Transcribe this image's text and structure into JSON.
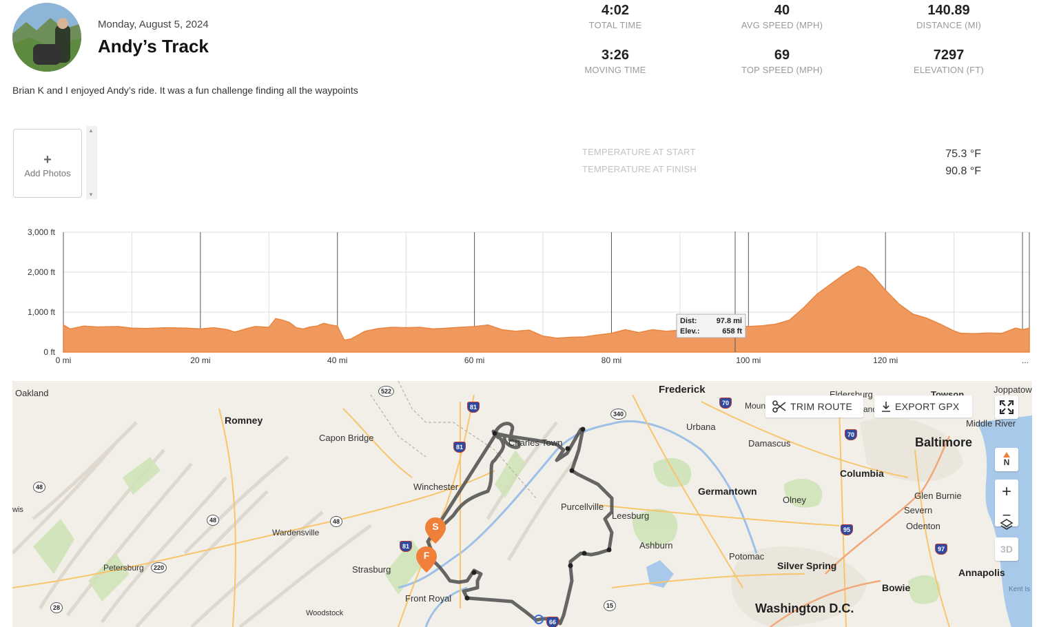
{
  "ride": {
    "date": "Monday, August 5, 2024",
    "title": "Andy’s Track",
    "description": "Brian K and I enjoyed Andy’s ride. It was a fun challenge finding all the waypoints"
  },
  "stats": [
    {
      "value": "4:02",
      "label": "TOTAL TIME"
    },
    {
      "value": "40",
      "label": "AVG SPEED (MPH)"
    },
    {
      "value": "140.89",
      "label": "DISTANCE (MI)"
    },
    {
      "value": "3:26",
      "label": "MOVING TIME"
    },
    {
      "value": "69",
      "label": "TOP SPEED (MPH)"
    },
    {
      "value": "7297",
      "label": "ELEVATION (FT)"
    }
  ],
  "photos": {
    "label": "Add Photos",
    "plus": "+"
  },
  "temperature": {
    "start_label": "TEMPERATURE AT START",
    "finish_label": "TEMPERATURE AT FINISH",
    "start_value": "75.3 °F",
    "finish_value": "90.8 °F"
  },
  "chart_data": {
    "type": "area",
    "title": "",
    "xlabel": "",
    "ylabel": "",
    "xlim": [
      0,
      141
    ],
    "ylim": [
      0,
      3000
    ],
    "grid": true,
    "color": "#f0995e",
    "y_ticks": [
      "0 ft",
      "1,000 ft",
      "2,000 ft",
      "3,000 ft"
    ],
    "x_ticks": [
      "0 mi",
      "20 mi",
      "40 mi",
      "60 mi",
      "80 mi",
      "100 mi",
      "120 mi",
      "..."
    ],
    "series": [
      {
        "x": [
          0,
          1,
          3,
          5,
          8,
          10,
          12,
          15,
          18,
          20,
          22,
          24,
          25,
          27,
          28,
          30,
          31,
          32,
          33,
          34,
          35,
          36,
          37,
          38,
          39,
          40,
          41,
          42,
          44,
          46,
          48,
          50,
          52,
          54,
          56,
          58,
          60,
          62,
          64,
          66,
          68,
          70,
          72,
          74,
          76,
          78,
          80,
          82,
          84,
          86,
          88,
          90,
          92,
          94,
          96,
          98,
          100,
          102,
          104,
          106,
          108,
          110,
          112,
          114,
          116,
          117,
          118,
          120,
          122,
          124,
          126,
          128,
          130,
          131,
          133,
          135,
          137,
          139,
          140,
          141
        ],
        "y": [
          680,
          580,
          650,
          630,
          640,
          600,
          590,
          610,
          600,
          580,
          610,
          560,
          500,
          600,
          640,
          620,
          840,
          800,
          740,
          610,
          580,
          630,
          650,
          720,
          680,
          650,
          300,
          330,
          520,
          590,
          620,
          610,
          620,
          580,
          600,
          620,
          640,
          680,
          560,
          520,
          550,
          400,
          350,
          370,
          380,
          430,
          470,
          560,
          490,
          560,
          520,
          550,
          560,
          610,
          630,
          658,
          640,
          660,
          700,
          800,
          1100,
          1450,
          1700,
          1950,
          2150,
          2100,
          1950,
          1550,
          1200,
          950,
          850,
          700,
          530,
          470,
          460,
          480,
          470,
          600,
          560,
          600
        ]
      }
    ],
    "tooltip": {
      "dist_label": "Dist:",
      "dist_value": "97.8 mi",
      "elev_label": "Elev.:",
      "elev_value": "658 ft"
    }
  },
  "map": {
    "trim_label": "TRIM ROUTE",
    "export_label": "EXPORT GPX",
    "compass_label": "N",
    "zoom_in": "+",
    "zoom_out": "−",
    "mode_3d": "3D",
    "start_marker": "S",
    "finish_marker": "F",
    "labels": {
      "oakland": "Oakland",
      "romney": "Romney",
      "capon": "Capon Bridge",
      "winchester": "Winchester",
      "charles": "Charles Town",
      "frederick": "Frederick",
      "urbana": "Urbana",
      "damascus": "Damascus",
      "eldersburg": "Eldersburg",
      "towson": "Towson",
      "joppatowne": "Joppatow",
      "middle": "Middle River",
      "baltimore": "Baltimore",
      "columbia": "Columbia",
      "germantown": "Germantown",
      "olney": "Olney",
      "glen": "Glen Burnie",
      "severn": "Severn",
      "odenton": "Odenton",
      "purcellville": "Purcellville",
      "leesburg": "Leesburg",
      "ashburn": "Ashburn",
      "potomac": "Potomac",
      "silver": "Silver Spring",
      "annapolis": "Annapolis",
      "bowie": "Bowie",
      "kent": "Kent Is",
      "washington": "Washington D.C.",
      "wardensville": "Wardensville",
      "petersburg": "Petersburg",
      "strasburg": "Strasburg",
      "front": "Front Royal",
      "woodstock": "Woodstock",
      "lewis": "wis",
      "mount": "Moun",
      "and": "and"
    },
    "shields": [
      "522",
      "81",
      "81",
      "340",
      "70",
      "70",
      "48",
      "48",
      "48",
      "81",
      "220",
      "28",
      "15",
      "66",
      "95",
      "97"
    ]
  }
}
